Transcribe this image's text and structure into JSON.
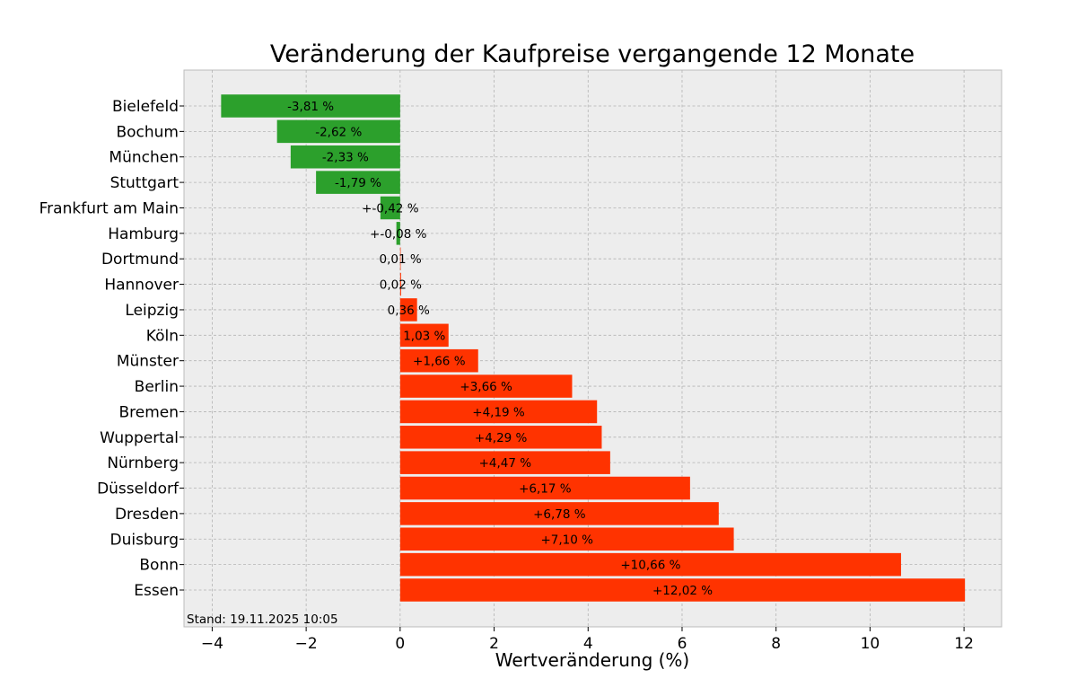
{
  "chart_data": {
    "type": "bar",
    "orientation": "horizontal",
    "title": "Veränderung der Kaufpreise vergangende 12 Monate",
    "xlabel": "Wertveränderung (%)",
    "ylabel": "",
    "xlim": [
      -4.6,
      12.8
    ],
    "xticks": [
      -4,
      -2,
      0,
      2,
      4,
      6,
      8,
      10,
      12
    ],
    "xtick_labels": [
      "−4",
      "−2",
      "0",
      "2",
      "4",
      "6",
      "8",
      "10",
      "12"
    ],
    "grid": true,
    "colors": {
      "negative": "#2ca02c",
      "positive": "#ff3300",
      "background": "#ededed",
      "frame": "#bcbcbc"
    },
    "categories": [
      "Bielefeld",
      "Bochum",
      "München",
      "Stuttgart",
      "Frankfurt am Main",
      "Hamburg",
      "Dortmund",
      "Hannover",
      "Leipzig",
      "Köln",
      "Münster",
      "Berlin",
      "Bremen",
      "Wuppertal",
      "Nürnberg",
      "Düsseldorf",
      "Dresden",
      "Duisburg",
      "Bonn",
      "Essen"
    ],
    "values": [
      -3.81,
      -2.62,
      -2.33,
      -1.79,
      -0.42,
      -0.08,
      0.01,
      0.02,
      0.36,
      1.03,
      1.66,
      3.66,
      4.19,
      4.29,
      4.47,
      6.17,
      6.78,
      7.1,
      10.66,
      12.02
    ],
    "data_labels": [
      "-3,81 %",
      "-2,62 %",
      "-2,33 %",
      "-1,79 %",
      "+-0,42 %",
      "+-0,08 %",
      "0,01 %",
      "0,02 %",
      "0,36 %",
      "1,03 %",
      "+1,66 %",
      "+3,66 %",
      "+4,19 %",
      "+4,29 %",
      "+4,47 %",
      "+6,17 %",
      "+6,78 %",
      "+7,10 %",
      "+10,66 %",
      "+12,02 %"
    ],
    "footnote": "Stand: 19.11.2025 10:05"
  }
}
